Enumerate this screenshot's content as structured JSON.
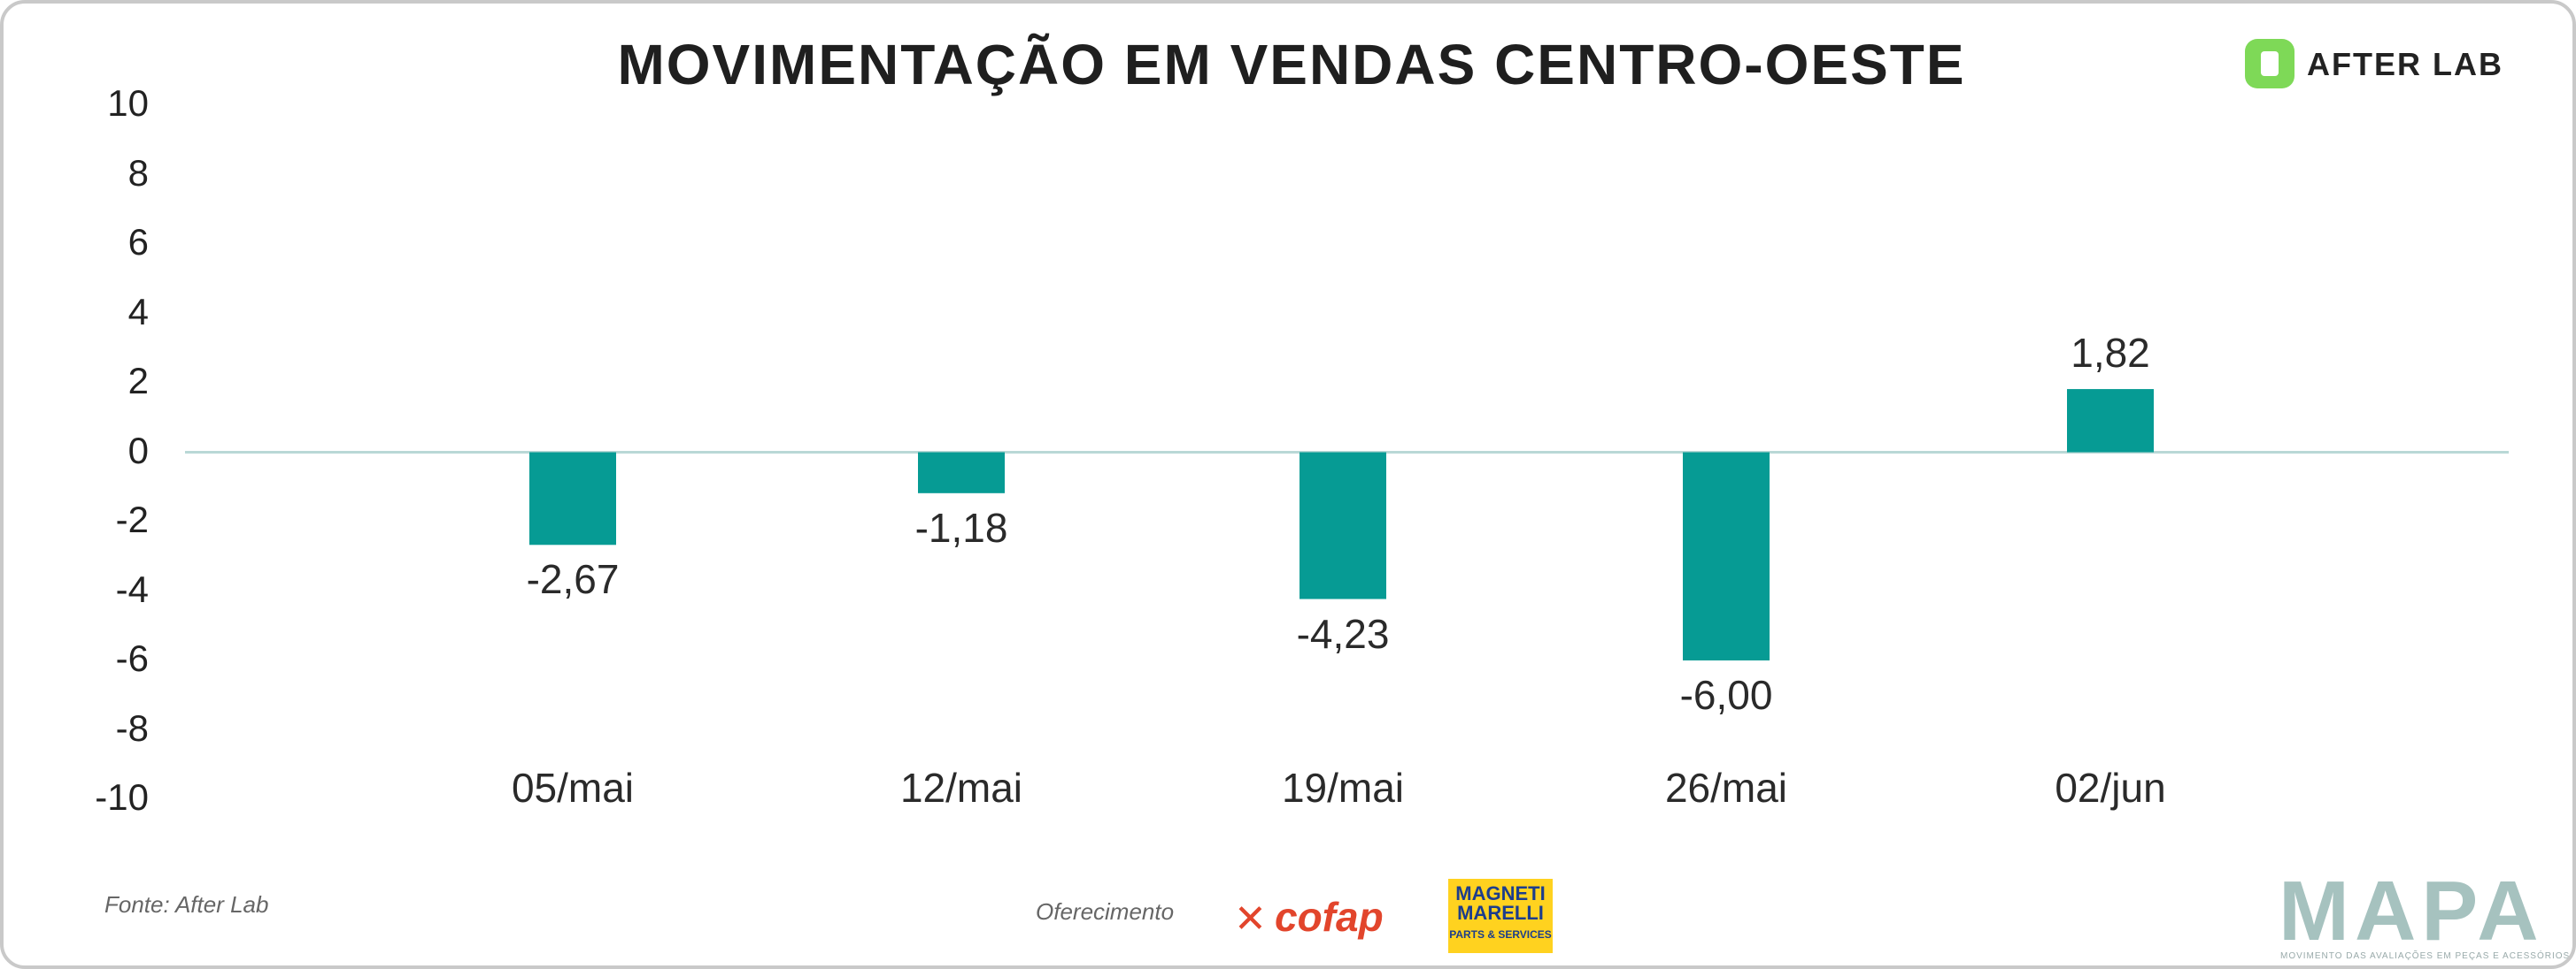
{
  "title": "MOVIMENTAÇÃO EM VENDAS CENTRO-OESTE",
  "brand": {
    "logo_text": "AFTER LAB",
    "logo_color": "#7ed957"
  },
  "footer": {
    "fonte": "Fonte: After Lab",
    "oferecimento": "Oferecimento",
    "sponsor1": "cofap",
    "sponsor2_line1": "MAGNETI",
    "sponsor2_line2": "MARELLI",
    "sponsor2_sub": "PARTS & SERVICES",
    "mapa": "MAPA",
    "mapa_sub": "MOVIMENTO DAS AVALIAÇÕES EM PEÇAS E ACESSÓRIOS"
  },
  "chart_data": {
    "type": "bar",
    "categories": [
      "05/mai",
      "12/mai",
      "19/mai",
      "26/mai",
      "02/jun"
    ],
    "values": [
      -2.67,
      -1.18,
      -4.23,
      -6.0,
      1.82
    ],
    "data_labels": [
      "-2,67",
      "-1,18",
      "-4,23",
      "-6,00",
      "1,82"
    ],
    "yticks": [
      "10",
      "8",
      "6",
      "4",
      "2",
      "0",
      "-2",
      "-4",
      "-6",
      "-8",
      "-10"
    ],
    "ylim": [
      -10,
      10
    ],
    "bar_color": "#069b94",
    "zero_line_color": "#b9d8d6",
    "grid": false
  }
}
